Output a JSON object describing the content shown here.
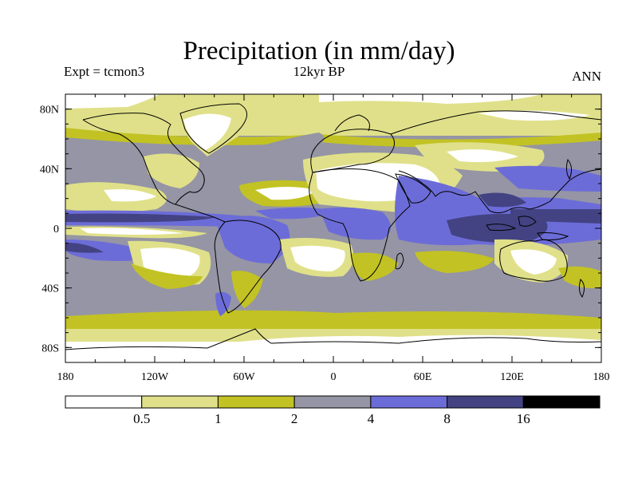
{
  "title": "Precipitation (in mm/day)",
  "expt_label": "Expt = tcmon3",
  "period_label": "12kyr BP",
  "season_label": "ANN",
  "lat_ticks": [
    "80N",
    "40N",
    "0",
    "40S",
    "80S"
  ],
  "lon_ticks": [
    "180",
    "120W",
    "60W",
    "0",
    "60E",
    "120E",
    "180"
  ],
  "colorbar": {
    "levels": [
      "0.5",
      "1",
      "2",
      "4",
      "8",
      "16"
    ],
    "colors": [
      "#ffffff",
      "#e0e08a",
      "#c2c224",
      "#9595a5",
      "#6c6cd8",
      "#434383",
      "#000000"
    ]
  },
  "colors": {
    "ocean_background": "#9595a5",
    "coastline": "#000000"
  }
}
